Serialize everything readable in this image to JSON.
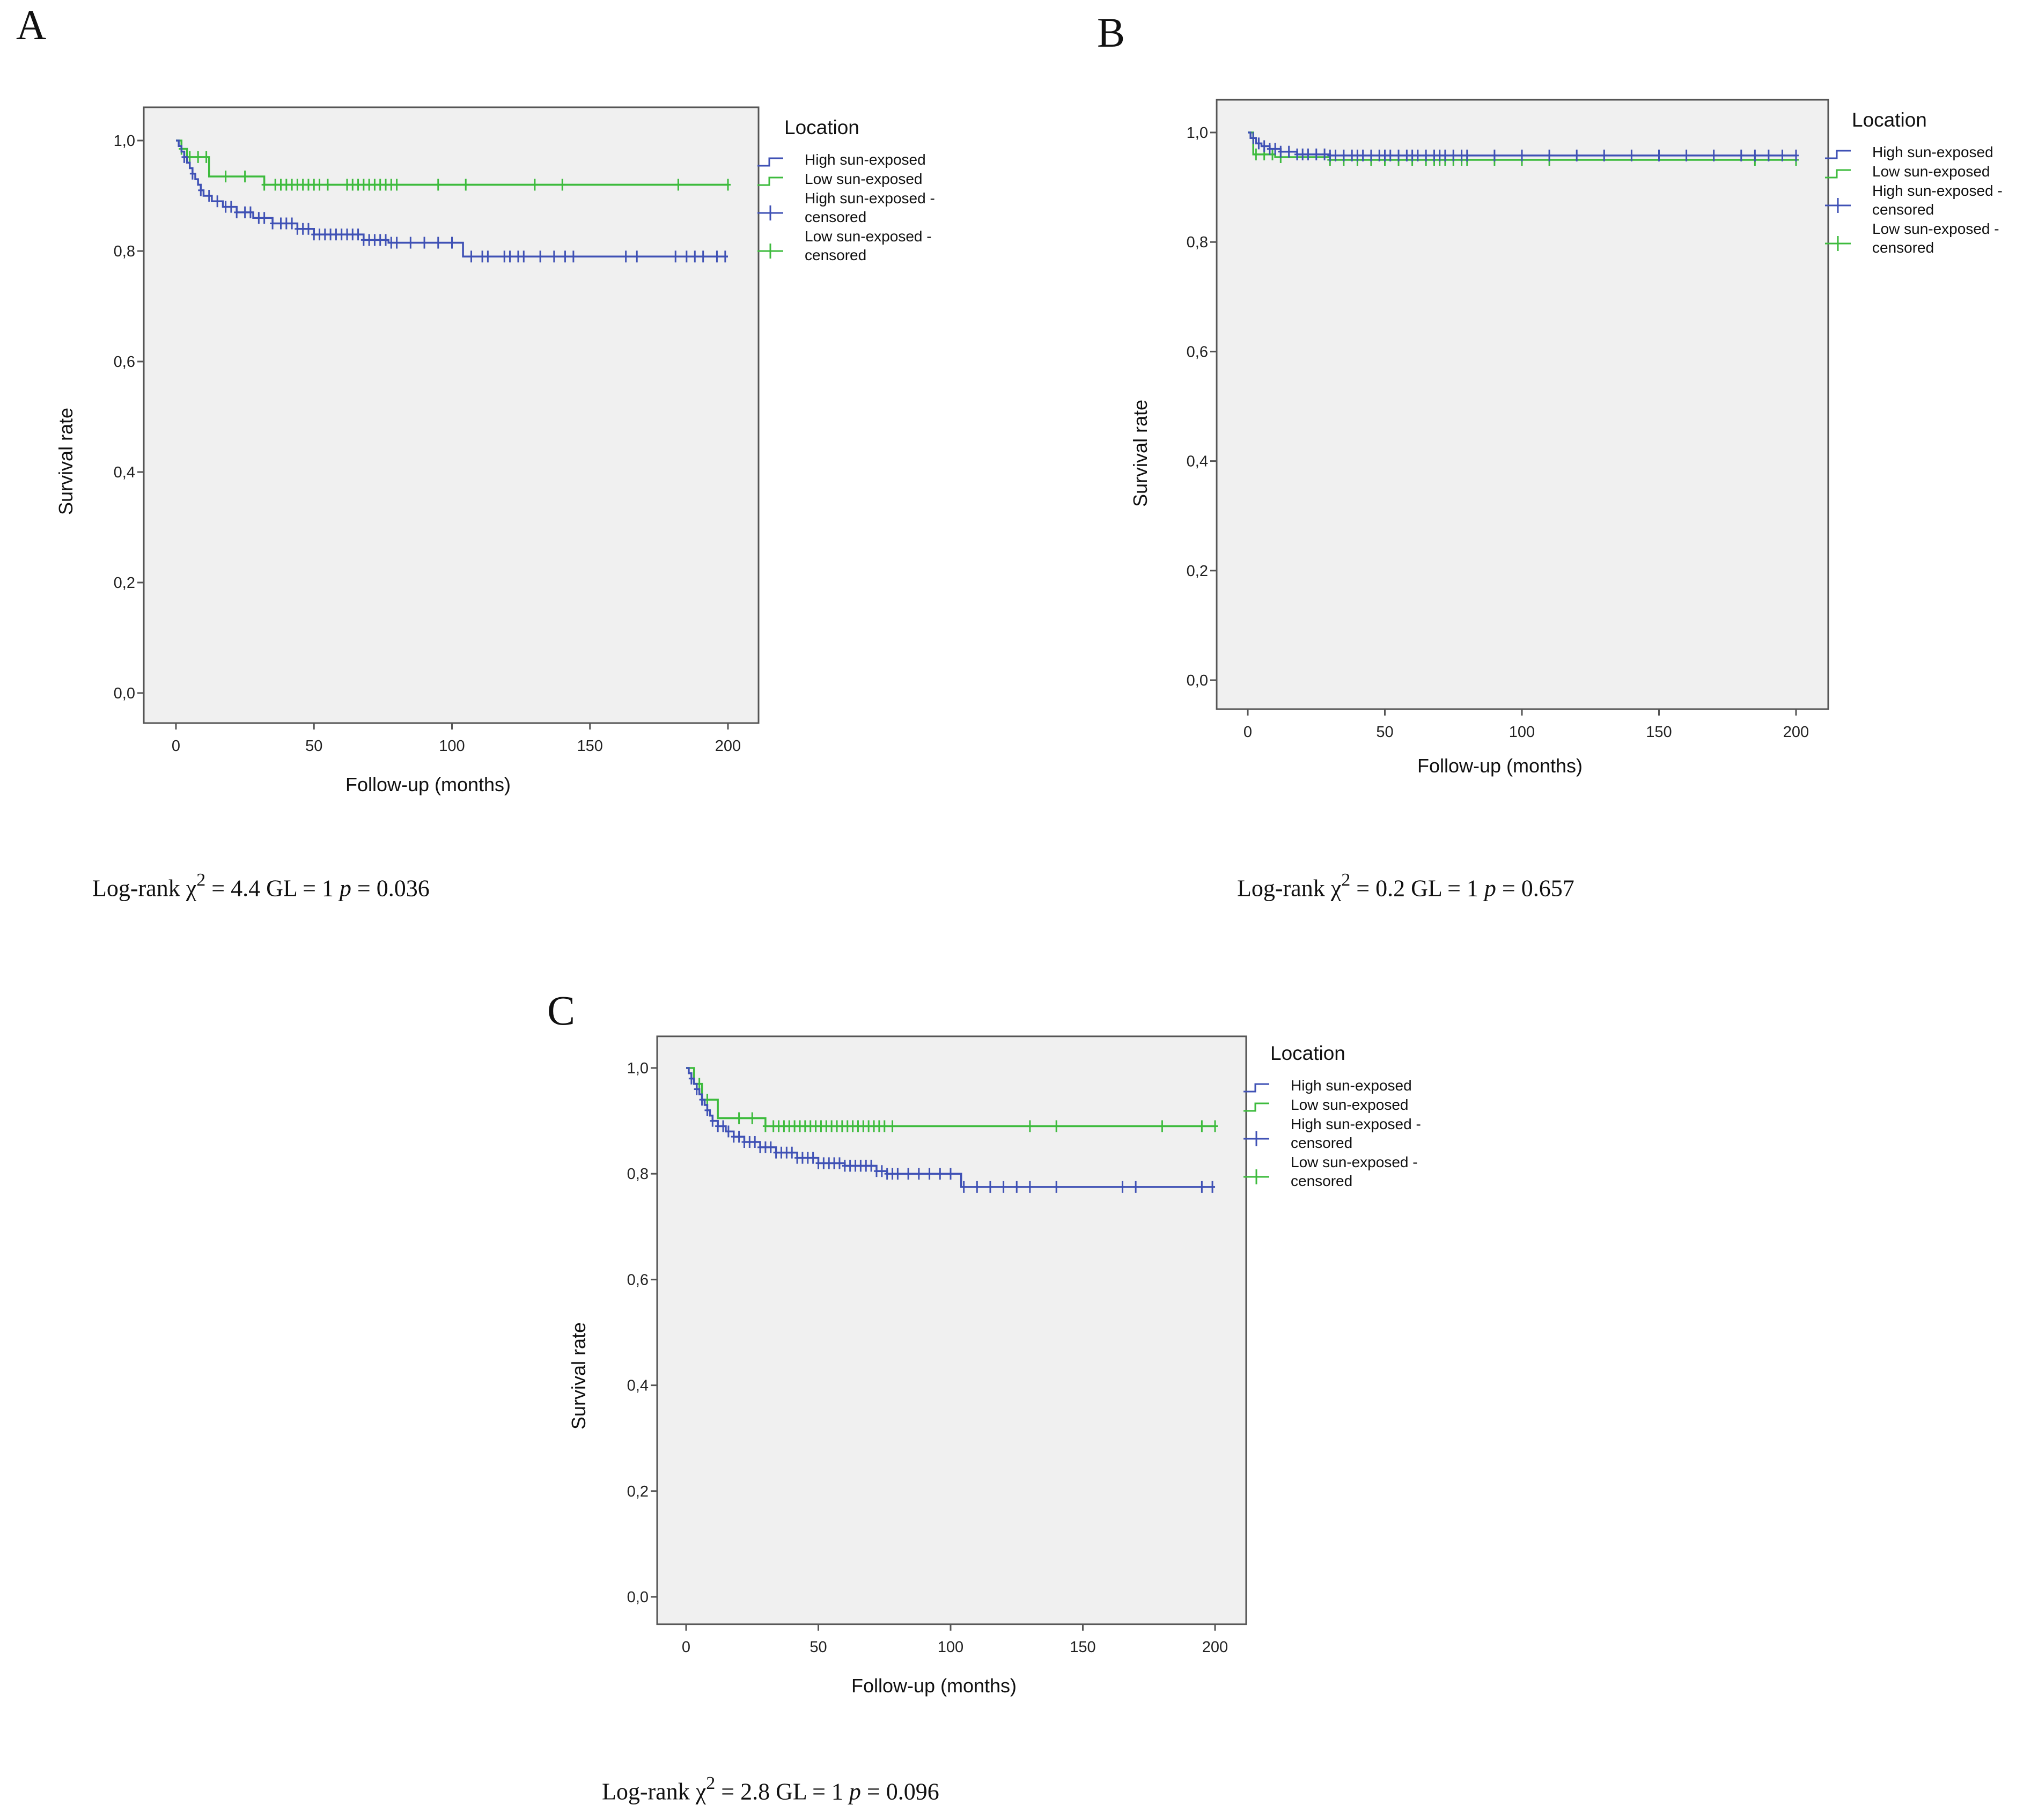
{
  "panels": [
    {
      "letter": "A",
      "stat": {
        "prefix": "Log-rank χ",
        "sup": "2",
        "mid": " = 4.4 GL = 1 ",
        "p": "p",
        "suffix": " = 0.036"
      }
    },
    {
      "letter": "B",
      "stat": {
        "prefix": "Log-rank χ",
        "sup": "2",
        "mid": " = 0.2 GL = 1 ",
        "p": "p",
        "suffix": " = 0.657"
      }
    },
    {
      "letter": "C",
      "stat": {
        "prefix": "Log-rank χ",
        "sup": "2",
        "mid": " = 2.8 GL = 1 ",
        "p": "p",
        "suffix": " = 0.096"
      }
    }
  ],
  "colors": {
    "high": "#3f51b5",
    "low": "#3dbb3d",
    "plot_bg": "#f0f0f0",
    "frame": "#555555"
  },
  "chart_data": [
    {
      "type": "line",
      "panel": "A",
      "title": "",
      "xlabel": "Follow-up (months)",
      "ylabel": "Survival rate",
      "xlim": [
        0,
        200
      ],
      "ylim": [
        0,
        1
      ],
      "xticks": [
        "0",
        "50",
        "100",
        "150",
        "200"
      ],
      "yticks": [
        "0,0",
        "0,2",
        "0,4",
        "0,6",
        "0,8",
        "1,0"
      ],
      "legend": {
        "title": "Location",
        "entries": [
          "High sun-exposed",
          "Low sun-exposed",
          "High sun-exposed - censored",
          "Low sun-exposed - censored"
        ]
      },
      "series": [
        {
          "name": "High sun-exposed",
          "steps": [
            [
              0,
              1.0
            ],
            [
              1,
              0.99
            ],
            [
              2,
              0.98
            ],
            [
              3,
              0.97
            ],
            [
              4,
              0.96
            ],
            [
              5,
              0.95
            ],
            [
              6,
              0.94
            ],
            [
              7,
              0.93
            ],
            [
              8,
              0.92
            ],
            [
              9,
              0.91
            ],
            [
              10,
              0.9
            ],
            [
              13,
              0.89
            ],
            [
              17,
              0.88
            ],
            [
              22,
              0.87
            ],
            [
              28,
              0.86
            ],
            [
              35,
              0.85
            ],
            [
              44,
              0.84
            ],
            [
              50,
              0.83
            ],
            [
              68,
              0.82
            ],
            [
              77,
              0.815
            ],
            [
              104,
              0.79
            ],
            [
              200,
              0.79
            ]
          ],
          "censored": [
            3,
            6,
            9,
            12,
            15,
            18,
            20,
            22,
            25,
            27,
            30,
            32,
            35,
            38,
            40,
            42,
            44,
            46,
            48,
            50,
            52,
            54,
            56,
            58,
            60,
            62,
            64,
            66,
            68,
            70,
            72,
            74,
            76,
            78,
            80,
            85,
            90,
            95,
            100,
            107,
            111,
            113,
            119,
            121,
            124,
            126,
            132,
            137,
            141,
            144,
            163,
            167,
            181,
            185,
            188,
            191,
            196,
            199
          ]
        },
        {
          "name": "Low sun-exposed",
          "steps": [
            [
              0,
              1.0
            ],
            [
              2,
              0.985
            ],
            [
              4,
              0.97
            ],
            [
              12,
              0.935
            ],
            [
              32,
              0.92
            ],
            [
              200,
              0.92
            ]
          ],
          "censored": [
            2,
            5,
            8,
            11,
            18,
            25,
            32,
            36,
            38,
            40,
            42,
            44,
            46,
            48,
            50,
            52,
            55,
            62,
            64,
            66,
            68,
            70,
            72,
            74,
            76,
            78,
            80,
            95,
            105,
            130,
            140,
            182,
            200
          ]
        }
      ]
    },
    {
      "type": "line",
      "panel": "B",
      "title": "",
      "xlabel": "Follow-up (months)",
      "ylabel": "Survival rate",
      "xlim": [
        0,
        200
      ],
      "ylim": [
        0,
        1
      ],
      "xticks": [
        "0",
        "50",
        "100",
        "150",
        "200"
      ],
      "yticks": [
        "0,0",
        "0,2",
        "0,4",
        "0,6",
        "0,8",
        "1,0"
      ],
      "legend": {
        "title": "Location",
        "entries": [
          "High sun-exposed",
          "Low sun-exposed",
          "High sun-exposed - censored",
          "Low sun-exposed - censored"
        ]
      },
      "series": [
        {
          "name": "High sun-exposed",
          "steps": [
            [
              0,
              1.0
            ],
            [
              1,
              0.99
            ],
            [
              3,
              0.98
            ],
            [
              5,
              0.975
            ],
            [
              8,
              0.97
            ],
            [
              12,
              0.965
            ],
            [
              18,
              0.96
            ],
            [
              30,
              0.958
            ],
            [
              200,
              0.958
            ]
          ],
          "censored": [
            2,
            4,
            6,
            8,
            10,
            12,
            15,
            18,
            20,
            22,
            25,
            28,
            30,
            32,
            35,
            38,
            40,
            42,
            45,
            48,
            50,
            52,
            55,
            58,
            60,
            62,
            65,
            68,
            70,
            72,
            75,
            78,
            80,
            90,
            100,
            110,
            120,
            130,
            140,
            150,
            160,
            170,
            180,
            185,
            190,
            195,
            200
          ]
        },
        {
          "name": "Low sun-exposed",
          "steps": [
            [
              0,
              1.0
            ],
            [
              2,
              0.96
            ],
            [
              10,
              0.955
            ],
            [
              30,
              0.95
            ],
            [
              200,
              0.95
            ]
          ],
          "censored": [
            3,
            6,
            9,
            12,
            30,
            35,
            40,
            45,
            50,
            55,
            60,
            65,
            68,
            70,
            72,
            75,
            78,
            80,
            90,
            100,
            110,
            185,
            200
          ]
        }
      ]
    },
    {
      "type": "line",
      "panel": "C",
      "title": "",
      "xlabel": "Follow-up (months)",
      "ylabel": "Survival rate",
      "xlim": [
        0,
        200
      ],
      "ylim": [
        0,
        1
      ],
      "xticks": [
        "0",
        "50",
        "100",
        "150",
        "200"
      ],
      "yticks": [
        "0,0",
        "0,2",
        "0,4",
        "0,6",
        "0,8",
        "1,0"
      ],
      "legend": {
        "title": "Location",
        "entries": [
          "High sun-exposed",
          "Low sun-exposed",
          "High sun-exposed - censored",
          "Low sun-exposed - censored"
        ]
      },
      "series": [
        {
          "name": "High sun-exposed",
          "steps": [
            [
              0,
              1.0
            ],
            [
              1,
              0.99
            ],
            [
              2,
              0.98
            ],
            [
              3,
              0.97
            ],
            [
              4,
              0.96
            ],
            [
              5,
              0.95
            ],
            [
              6,
              0.94
            ],
            [
              7,
              0.93
            ],
            [
              8,
              0.92
            ],
            [
              9,
              0.91
            ],
            [
              10,
              0.9
            ],
            [
              12,
              0.89
            ],
            [
              15,
              0.88
            ],
            [
              18,
              0.87
            ],
            [
              22,
              0.86
            ],
            [
              28,
              0.85
            ],
            [
              34,
              0.84
            ],
            [
              42,
              0.83
            ],
            [
              50,
              0.82
            ],
            [
              60,
              0.815
            ],
            [
              72,
              0.805
            ],
            [
              76,
              0.8
            ],
            [
              104,
              0.775
            ],
            [
              200,
              0.775
            ]
          ],
          "censored": [
            2,
            4,
            6,
            8,
            10,
            12,
            14,
            16,
            18,
            20,
            22,
            24,
            26,
            28,
            30,
            32,
            34,
            36,
            38,
            40,
            42,
            44,
            46,
            48,
            50,
            52,
            54,
            56,
            58,
            60,
            62,
            64,
            66,
            68,
            70,
            72,
            74,
            76,
            78,
            80,
            84,
            88,
            92,
            96,
            100,
            105,
            110,
            115,
            120,
            125,
            130,
            140,
            165,
            170,
            195,
            199
          ]
        },
        {
          "name": "Low sun-exposed",
          "steps": [
            [
              0,
              1.0
            ],
            [
              3,
              0.97
            ],
            [
              6,
              0.94
            ],
            [
              12,
              0.905
            ],
            [
              30,
              0.89
            ],
            [
              200,
              0.89
            ]
          ],
          "censored": [
            5,
            8,
            20,
            25,
            30,
            33,
            35,
            37,
            39,
            41,
            43,
            45,
            47,
            49,
            51,
            53,
            55,
            57,
            59,
            61,
            63,
            65,
            67,
            69,
            71,
            73,
            75,
            78,
            130,
            140,
            180,
            195,
            200
          ]
        }
      ]
    }
  ]
}
